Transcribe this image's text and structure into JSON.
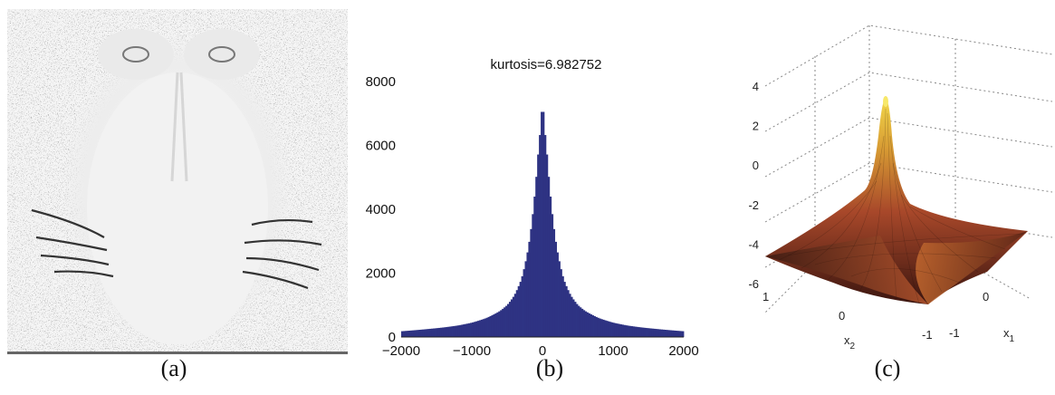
{
  "panels": {
    "a": {
      "caption": "(a)"
    },
    "b": {
      "caption": "(b)"
    },
    "c": {
      "caption": "(c)"
    }
  },
  "chart_data": [
    {
      "type": "bar",
      "panel": "b",
      "title": "kurtosis=6.982752",
      "xlabel": "",
      "ylabel": "",
      "xlim": [
        -2000,
        2000
      ],
      "ylim": [
        0,
        8000
      ],
      "xticks": [
        "-2000",
        "-1000",
        "0",
        "1000",
        "2000"
      ],
      "yticks": [
        "0",
        "2000",
        "4000",
        "6000",
        "8000"
      ],
      "bar_color": "#2e3383",
      "peak_value": 7050,
      "x": [
        -2000,
        -1800,
        -1600,
        -1400,
        -1200,
        -1000,
        -800,
        -600,
        -500,
        -400,
        -300,
        -200,
        -150,
        -100,
        -50,
        0,
        50,
        100,
        150,
        200,
        300,
        400,
        500,
        600,
        800,
        1000,
        1200,
        1400,
        1600,
        1800,
        2000
      ],
      "values": [
        180,
        215,
        255,
        300,
        360,
        450,
        590,
        820,
        1000,
        1300,
        1800,
        2800,
        3600,
        4700,
        6100,
        7050,
        6100,
        4700,
        3600,
        2800,
        1800,
        1300,
        1000,
        820,
        590,
        450,
        360,
        300,
        255,
        215,
        180
      ]
    },
    {
      "type": "surface",
      "panel": "c",
      "title": "",
      "xlabel": "x1",
      "ylabel": "x2",
      "zlim": [
        -6,
        4
      ],
      "zticks": [
        "4",
        "2",
        "0",
        "-2",
        "-4",
        "-6"
      ],
      "x1_ticks": [
        "-1",
        "0"
      ],
      "x2_ticks": [
        "1",
        "0",
        "-1"
      ],
      "peak_value": 3.5,
      "corner_value": -4.8,
      "grid_on": true
    }
  ]
}
